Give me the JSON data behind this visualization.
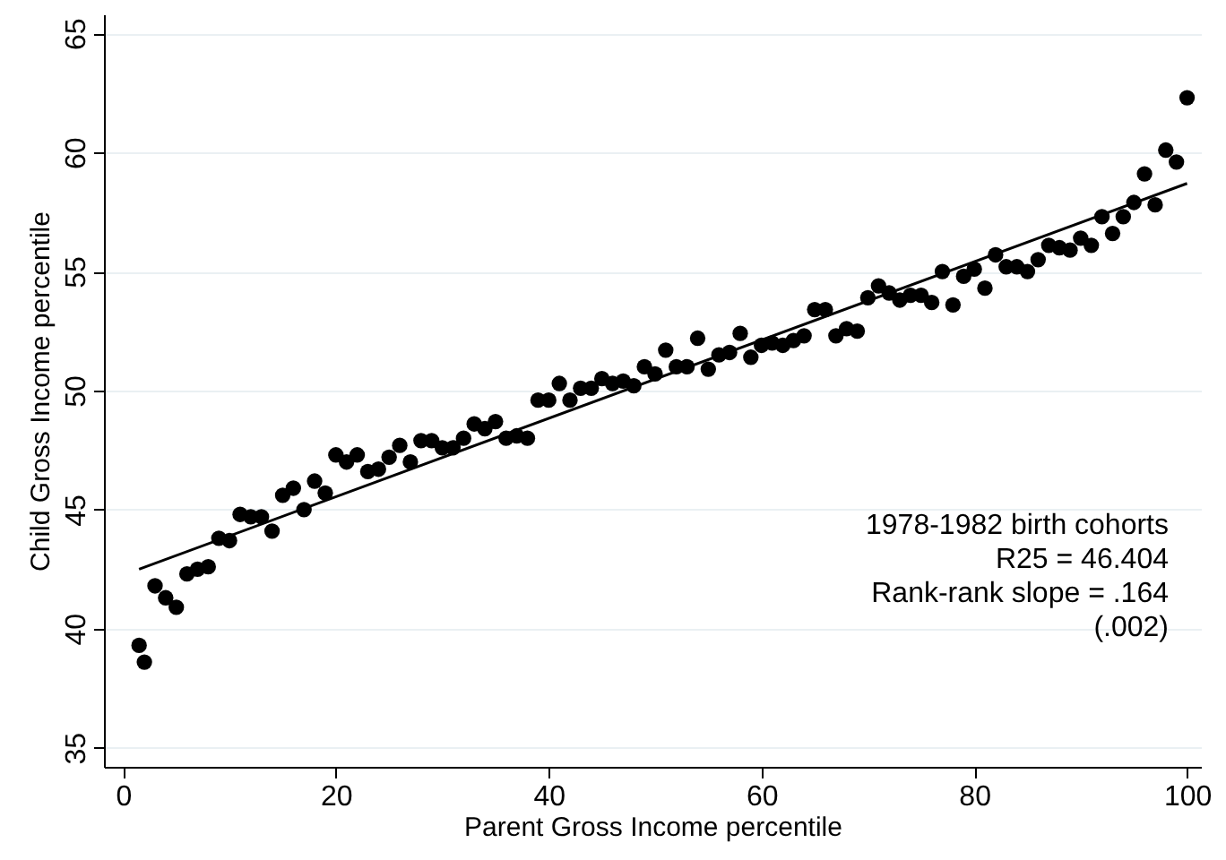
{
  "chart_data": {
    "type": "scatter",
    "xlabel": "Parent Gross Income percentile",
    "ylabel": "Child Gross Income percentile",
    "xlim": [
      -1.8,
      101.3
    ],
    "ylim": [
      34.2,
      65.8
    ],
    "xticks": [
      0,
      20,
      40,
      60,
      80,
      100
    ],
    "yticks": [
      35,
      40,
      45,
      50,
      55,
      60,
      65
    ],
    "grid": "y",
    "series": [
      {
        "marker": "circle",
        "color": "#000000",
        "x": [
          1.5,
          2,
          3,
          4,
          5,
          6,
          7,
          8,
          9,
          10,
          11,
          12,
          13,
          14,
          15,
          16,
          17,
          18,
          19,
          20,
          21,
          22,
          23,
          24,
          25,
          26,
          27,
          28,
          29,
          30,
          31,
          32,
          33,
          34,
          35,
          36,
          37,
          38,
          39,
          40,
          41,
          42,
          43,
          44,
          45,
          46,
          47,
          48,
          49,
          50,
          51,
          52,
          53,
          54,
          55,
          56,
          57,
          58,
          59,
          60,
          61,
          62,
          63,
          64,
          65,
          66,
          67,
          68,
          69,
          70,
          71,
          72,
          73,
          74,
          75,
          76,
          77,
          78,
          79,
          80,
          81,
          82,
          83,
          84,
          85,
          86,
          87,
          88,
          89,
          90,
          91,
          92,
          93,
          94,
          95,
          96,
          97,
          98,
          99,
          100
        ],
        "values": [
          39.3,
          38.6,
          41.8,
          41.3,
          40.9,
          42.3,
          42.5,
          42.6,
          43.8,
          43.7,
          44.8,
          44.7,
          44.7,
          44.1,
          45.6,
          45.9,
          45.0,
          46.2,
          45.7,
          47.3,
          47.0,
          47.3,
          46.6,
          46.7,
          47.2,
          47.7,
          47.0,
          47.9,
          47.9,
          47.6,
          47.6,
          48.0,
          48.6,
          48.4,
          48.7,
          48.0,
          48.1,
          48.0,
          49.6,
          49.6,
          50.3,
          49.6,
          50.1,
          50.1,
          50.5,
          50.3,
          50.4,
          50.2,
          51.0,
          50.7,
          51.7,
          51.0,
          51.0,
          52.2,
          50.9,
          51.5,
          51.6,
          52.4,
          51.4,
          51.9,
          52.0,
          51.9,
          52.1,
          52.3,
          53.4,
          53.4,
          52.3,
          52.6,
          52.5,
          53.9,
          54.4,
          54.1,
          53.8,
          54.0,
          54.0,
          53.7,
          55.0,
          53.6,
          54.8,
          55.1,
          54.3,
          55.7,
          55.2,
          55.2,
          55.0,
          55.5,
          56.1,
          56.0,
          55.9,
          56.4,
          56.1,
          57.3,
          56.6,
          57.3,
          57.9,
          59.1,
          57.8,
          60.1,
          59.6,
          62.3
        ]
      },
      {
        "type": "line",
        "marker": "none",
        "color": "#000000",
        "x": [
          1.5,
          100
        ],
        "values": [
          42.5,
          58.7
        ]
      }
    ],
    "annotations": [
      "1978-1982 birth cohorts",
      "R25 = 46.404",
      "Rank-rank slope = .164",
      "(.002)"
    ]
  }
}
